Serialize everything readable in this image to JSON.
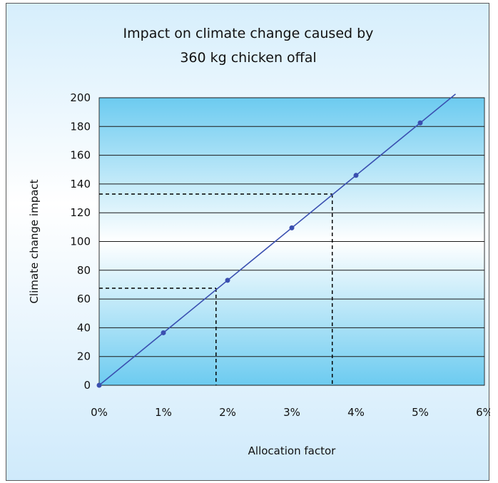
{
  "chart_data": {
    "type": "line",
    "title_line1": "Impact on climate change caused by",
    "title_line2": "360 kg chicken offal",
    "xlabel": "Allocation factor",
    "ylabel": "Climate change impact",
    "x_ticks": [
      "0%",
      "1%",
      "2%",
      "3%",
      "4%",
      "5%",
      "6%"
    ],
    "y_ticks": [
      "0",
      "20",
      "40",
      "60",
      "80",
      "100",
      "120",
      "140",
      "160",
      "180",
      "200"
    ],
    "xlim": [
      0,
      6
    ],
    "ylim": [
      0,
      200
    ],
    "grid": true,
    "legend": "none",
    "series": [
      {
        "x": [
          0,
          1,
          2,
          3,
          4,
          5
        ],
        "y": [
          0,
          36.5,
          73,
          109.5,
          146,
          182.5
        ],
        "color": "#3a4fb0",
        "line_end": 5.55
      }
    ],
    "annotations": [
      {
        "type": "dashed-guide",
        "x": 1.82,
        "y": 67.5
      },
      {
        "type": "dashed-guide",
        "x": 3.63,
        "y": 133
      }
    ],
    "colors": {
      "plot_bg_top": "#6ccbf0",
      "plot_bg_mid": "#ffffff",
      "line": "#3a4fb0",
      "marker": "#3a4fb0"
    }
  }
}
